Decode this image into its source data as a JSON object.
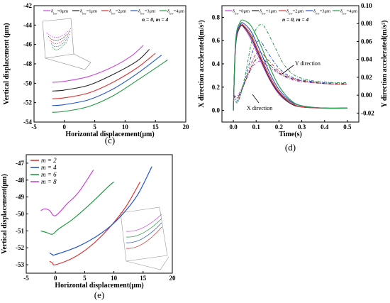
{
  "chart_data": [
    {
      "id": "c",
      "type": "line",
      "caption": "(c)",
      "xlabel": "Horizontal displacement(μm)",
      "ylabel": "Vertical displacement (μm)",
      "xlim": [
        -5,
        20
      ],
      "ylim": [
        -54,
        -42
      ],
      "xticks": [
        -5,
        0,
        5,
        10,
        15,
        20
      ],
      "yticks": [
        -54,
        -52,
        -50,
        -48,
        -46,
        -44,
        -42
      ],
      "note": "n = 0, m = 4",
      "legend_position": "top",
      "legend": [
        "δ_hw=0μm",
        "δ_hw=1μm",
        "δ_hw=2μm",
        "δ_hw=3μm",
        "δ_hw=4μm"
      ],
      "series": [
        {
          "name": "δ_hw=0μm",
          "color": "#cc44dd",
          "x": [
            -2,
            0,
            4,
            8,
            11,
            13
          ],
          "y": [
            -49.9,
            -49.8,
            -49.3,
            -48.3,
            -47.2,
            -46.1
          ]
        },
        {
          "name": "δ_hw=1μm",
          "color": "#222222",
          "x": [
            -2,
            0,
            4,
            8,
            12,
            14
          ],
          "y": [
            -50.8,
            -50.7,
            -50.2,
            -49.1,
            -47.7,
            -46.5
          ]
        },
        {
          "name": "δ_hw=2μm",
          "color": "#dd3333",
          "x": [
            -2,
            0,
            4,
            8,
            12,
            15
          ],
          "y": [
            -51.6,
            -51.5,
            -51.0,
            -49.9,
            -48.4,
            -46.9
          ]
        },
        {
          "name": "δ_hw=3μm",
          "color": "#2255cc",
          "x": [
            -2,
            0,
            4,
            8,
            12,
            16
          ],
          "y": [
            -52.3,
            -52.2,
            -51.7,
            -50.6,
            -49.0,
            -47.1
          ]
        },
        {
          "name": "δ_hw=4μm",
          "color": "#229944",
          "x": [
            -2,
            0,
            4,
            8,
            12,
            17
          ],
          "y": [
            -53.0,
            -52.9,
            -52.4,
            -51.3,
            -49.7,
            -47.6
          ]
        }
      ]
    },
    {
      "id": "d",
      "type": "line",
      "caption": "(d)",
      "xlabel": "Time(s)",
      "ylabel": "X direction accelerated(m/s²)",
      "ylabel_right": "Y direction accelerated(m/s²)",
      "xlim": [
        -0.05,
        0.55
      ],
      "ylim": [
        -0.1,
        0.9
      ],
      "ylim_right": [
        -0.03,
        0.1
      ],
      "xticks": [
        0.0,
        0.1,
        0.2,
        0.3,
        0.4,
        0.5
      ],
      "yticks": [
        0.0,
        0.2,
        0.4,
        0.6,
        0.8
      ],
      "yticks_right": [
        -0.02,
        0.0,
        0.02,
        0.04,
        0.06,
        0.08,
        0.1
      ],
      "note": "n = 0, m = 4",
      "legend_position": "top",
      "legend": [
        "δ_hw=0μm",
        "δ_hw=1μm",
        "δ_hw=2μm",
        "δ_hw=3μm",
        "δ_hw=4μm"
      ],
      "annotations": [
        "Y direction",
        "X direction"
      ],
      "series_x": [
        {
          "name": "δ_hw=0μm",
          "color": "#cc44dd",
          "x": [
            0,
            0.01,
            0.03,
            0.05,
            0.08,
            0.12,
            0.16,
            0.2,
            0.25,
            0.3,
            0.4,
            0.5
          ],
          "y": [
            0.0,
            0.55,
            0.72,
            0.7,
            0.6,
            0.42,
            0.26,
            0.14,
            0.06,
            0.03,
            0.02,
            0.02
          ]
        },
        {
          "name": "δ_hw=1μm",
          "color": "#222222",
          "x": [
            0,
            0.01,
            0.03,
            0.05,
            0.08,
            0.12,
            0.16,
            0.2,
            0.25,
            0.3,
            0.4,
            0.5
          ],
          "y": [
            0.0,
            0.56,
            0.72,
            0.71,
            0.62,
            0.44,
            0.27,
            0.15,
            0.06,
            0.03,
            0.02,
            0.02
          ]
        },
        {
          "name": "δ_hw=2μm",
          "color": "#dd3333",
          "x": [
            0,
            0.01,
            0.03,
            0.05,
            0.08,
            0.12,
            0.16,
            0.2,
            0.25,
            0.3,
            0.4,
            0.5
          ],
          "y": [
            0.0,
            0.57,
            0.73,
            0.72,
            0.64,
            0.46,
            0.29,
            0.16,
            0.07,
            0.03,
            0.02,
            0.02
          ]
        },
        {
          "name": "δ_hw=3μm",
          "color": "#2255cc",
          "x": [
            0,
            0.01,
            0.03,
            0.05,
            0.08,
            0.12,
            0.16,
            0.2,
            0.25,
            0.3,
            0.4,
            0.5
          ],
          "y": [
            0.0,
            0.58,
            0.74,
            0.74,
            0.67,
            0.5,
            0.32,
            0.18,
            0.08,
            0.04,
            0.02,
            0.02
          ]
        },
        {
          "name": "δ_hw=4μm",
          "color": "#229944",
          "x": [
            0,
            0.01,
            0.03,
            0.05,
            0.08,
            0.12,
            0.16,
            0.2,
            0.25,
            0.3,
            0.4,
            0.5
          ],
          "y": [
            0.0,
            0.6,
            0.76,
            0.77,
            0.72,
            0.56,
            0.37,
            0.21,
            0.09,
            0.04,
            0.02,
            0.02
          ]
        }
      ],
      "series_y": [
        {
          "name": "δ_hw=0μm",
          "color": "#cc44dd",
          "x": [
            0,
            0.02,
            0.05,
            0.08,
            0.1,
            0.12,
            0.15,
            0.2,
            0.25,
            0.3,
            0.4,
            0.5
          ],
          "y": [
            0.0,
            0.0,
            0.015,
            0.03,
            0.036,
            0.038,
            0.033,
            0.024,
            0.018,
            0.015,
            0.013,
            0.012
          ]
        },
        {
          "name": "δ_hw=1μm",
          "color": "#222222",
          "x": [
            0,
            0.02,
            0.05,
            0.08,
            0.1,
            0.12,
            0.15,
            0.2,
            0.25,
            0.3,
            0.4,
            0.5
          ],
          "y": [
            0.0,
            -0.002,
            0.014,
            0.032,
            0.04,
            0.042,
            0.036,
            0.025,
            0.019,
            0.016,
            0.013,
            0.012
          ]
        },
        {
          "name": "δ_hw=2μm",
          "color": "#dd3333",
          "x": [
            0,
            0.02,
            0.05,
            0.08,
            0.1,
            0.12,
            0.15,
            0.2,
            0.25,
            0.3,
            0.4,
            0.5
          ],
          "y": [
            0.0,
            -0.004,
            0.014,
            0.036,
            0.046,
            0.048,
            0.04,
            0.027,
            0.02,
            0.016,
            0.013,
            0.012
          ]
        },
        {
          "name": "δ_hw=3μm",
          "color": "#2255cc",
          "x": [
            0,
            0.02,
            0.05,
            0.08,
            0.1,
            0.12,
            0.15,
            0.2,
            0.25,
            0.3,
            0.4,
            0.5
          ],
          "y": [
            0.0,
            -0.006,
            0.016,
            0.045,
            0.058,
            0.06,
            0.048,
            0.03,
            0.021,
            0.017,
            0.014,
            0.013
          ]
        },
        {
          "name": "δ_hw=4μm",
          "color": "#229944",
          "x": [
            0,
            0.02,
            0.05,
            0.08,
            0.1,
            0.12,
            0.14,
            0.18,
            0.22,
            0.27,
            0.35,
            0.45,
            0.5
          ],
          "y": [
            0.0,
            -0.008,
            0.02,
            0.06,
            0.074,
            0.079,
            0.075,
            0.055,
            0.035,
            0.022,
            0.016,
            0.014,
            0.014
          ]
        }
      ]
    },
    {
      "id": "e",
      "type": "line",
      "caption": "(e)",
      "xlabel": "Horizontal displacement(μm)",
      "ylabel": "Vertical displacement(μm)",
      "xlim": [
        -5,
        20
      ],
      "ylim": [
        -53.5,
        -46.5
      ],
      "xticks": [
        -5,
        0,
        5,
        10,
        15,
        20
      ],
      "yticks": [
        -53,
        -52,
        -51,
        -50,
        -49,
        -48,
        -47
      ],
      "legend_position": "top-left",
      "legend": [
        "m = 2",
        "m = 4",
        "m = 6",
        "m = 8"
      ],
      "series": [
        {
          "name": "m = 2",
          "color": "#dd3333",
          "x": [
            -1,
            -0.5,
            0,
            3,
            6,
            9,
            12,
            14.5
          ],
          "y": [
            -52.8,
            -52.9,
            -53.0,
            -52.6,
            -51.9,
            -50.9,
            -49.6,
            -48.1
          ]
        },
        {
          "name": "m = 4",
          "color": "#2255cc",
          "x": [
            -1,
            -0.5,
            0,
            4,
            8,
            11,
            14,
            16.5
          ],
          "y": [
            -52.3,
            -52.4,
            -52.4,
            -51.9,
            -51.1,
            -50.2,
            -48.9,
            -47.2
          ]
        },
        {
          "name": "m = 6",
          "color": "#229944",
          "x": [
            -2.5,
            -1.5,
            -0.5,
            0.5,
            3,
            6,
            9,
            10
          ],
          "y": [
            -51.0,
            -51.1,
            -51.2,
            -50.9,
            -50.3,
            -49.4,
            -48.4,
            -48.1
          ]
        },
        {
          "name": "m = 8",
          "color": "#cc44dd",
          "x": [
            -2.5,
            -1.8,
            -1,
            0,
            2,
            4,
            6.5
          ],
          "y": [
            -49.8,
            -49.7,
            -49.8,
            -50.1,
            -49.4,
            -48.7,
            -47.4
          ]
        }
      ]
    }
  ]
}
